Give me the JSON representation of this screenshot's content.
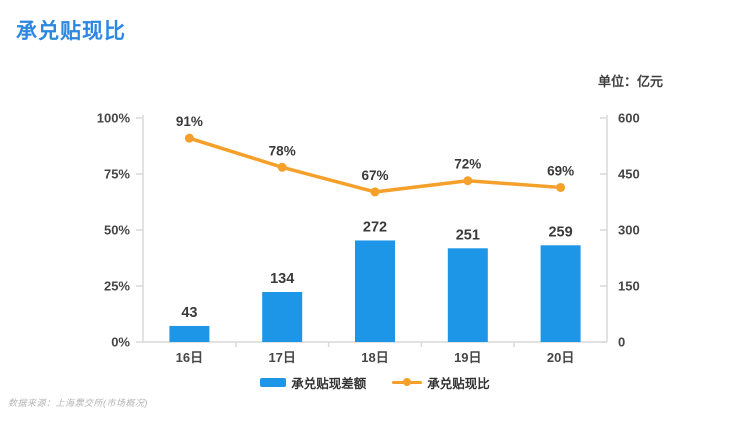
{
  "page": {
    "title": "承兑贴现比",
    "unit_label": "单位：亿元",
    "source_note": "数据来源：上海票交所(市场概况)"
  },
  "colors": {
    "title": "#2D87E1",
    "bar": "#1E96E8",
    "line": "#F5A02B",
    "axis": "#D9D9D9",
    "tick_label": "#464646",
    "value_label": "#3A3A3A"
  },
  "legend": [
    {
      "label": "承兑贴现差额",
      "type": "bar"
    },
    {
      "label": "承兑贴现比",
      "type": "line"
    }
  ],
  "chart_data": {
    "type": "combo-bar-line",
    "title": "承兑贴现比",
    "categories": [
      "16日",
      "17日",
      "18日",
      "19日",
      "20日"
    ],
    "series": [
      {
        "name": "承兑贴现差额",
        "type": "bar",
        "axis": "right",
        "values": [
          43,
          134,
          272,
          251,
          259
        ],
        "labels": [
          "43",
          "134",
          "272",
          "251",
          "259"
        ]
      },
      {
        "name": "承兑贴现比",
        "type": "line",
        "axis": "left",
        "values": [
          91,
          78,
          67,
          72,
          69
        ],
        "labels": [
          "91%",
          "78%",
          "67%",
          "72%",
          "69%"
        ]
      }
    ],
    "left_axis": {
      "min": 0,
      "max": 100,
      "ticks": [
        "0%",
        "25%",
        "50%",
        "75%",
        "100%"
      ]
    },
    "right_axis": {
      "min": 0,
      "max": 600,
      "ticks": [
        "0",
        "150",
        "300",
        "450",
        "600"
      ],
      "unit": "亿元"
    },
    "grid": false,
    "legend_position": "bottom"
  }
}
